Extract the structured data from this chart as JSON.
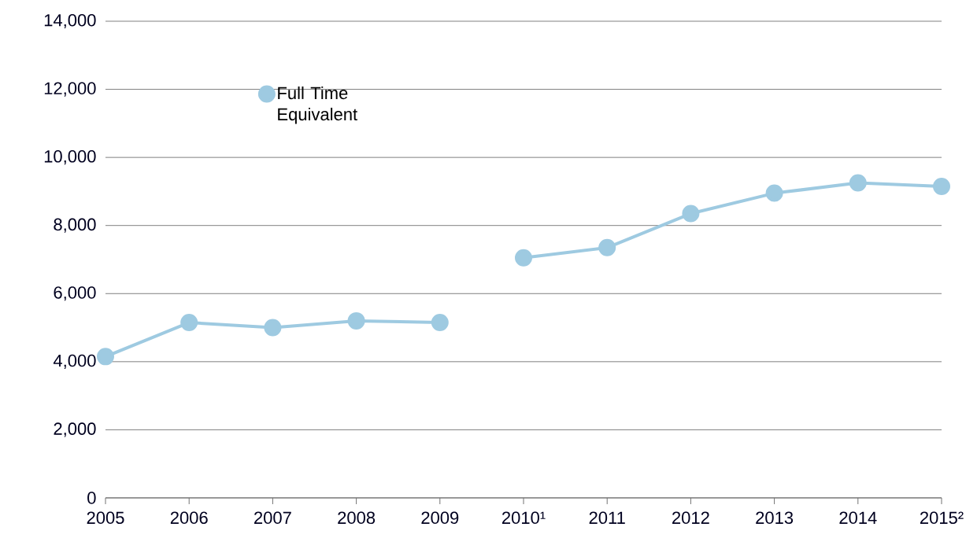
{
  "chart_data": {
    "type": "line",
    "categories": [
      "2005",
      "2006",
      "2007",
      "2008",
      "2009",
      "2010¹",
      "2011",
      "2012",
      "2013",
      "2014",
      "2015²"
    ],
    "series": [
      {
        "name": "Full Time Equivalent",
        "color": "#9ecae1",
        "values": [
          4150,
          5150,
          5000,
          5200,
          5150,
          null,
          null,
          null,
          null,
          null,
          null
        ]
      },
      {
        "color": "#9ecae1",
        "values": [
          null,
          null,
          null,
          null,
          null,
          7050,
          7350,
          8350,
          8950,
          9250,
          9150
        ]
      }
    ],
    "ylim": [
      0,
      14000
    ],
    "yticks": [
      0,
      {
        "value": 2000,
        "label": "2,000"
      },
      {
        "value": 4000,
        "label": "4,000"
      },
      {
        "value": 6000,
        "label": "6,000"
      },
      {
        "value": 8000,
        "label": "8,000"
      },
      {
        "value": 10000,
        "label": "10,000"
      },
      {
        "value": 12000,
        "label": "12,000"
      },
      {
        "value": 14000,
        "label": "14,000"
      }
    ],
    "grid": "y",
    "legend": "top left",
    "marker": "circle",
    "line_style": "solid"
  }
}
